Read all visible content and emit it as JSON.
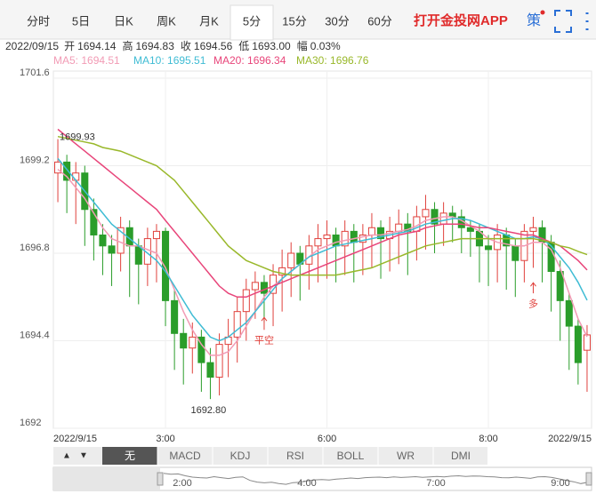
{
  "toolbar": {
    "tabs": [
      "分时",
      "5日",
      "日K",
      "周K",
      "月K",
      "5分",
      "15分",
      "30分",
      "60分"
    ],
    "active_tab": 5,
    "app_link": "打开金投网APP",
    "strategy": "策"
  },
  "quote": {
    "date": "2022/09/15",
    "items": [
      {
        "label": "开",
        "value": "1694.14"
      },
      {
        "label": "高",
        "value": "1694.83"
      },
      {
        "label": "收",
        "value": "1694.56"
      },
      {
        "label": "低",
        "value": "1693.00"
      },
      {
        "label": "幅",
        "value": "0.03%"
      }
    ]
  },
  "chart_data": {
    "type": "candlestick",
    "categories": [
      "2022/9/15",
      null,
      null,
      null,
      null,
      null,
      null,
      null,
      null,
      null,
      null,
      null,
      "3:00",
      null,
      null,
      null,
      null,
      null,
      null,
      null,
      null,
      null,
      null,
      null,
      null,
      null,
      null,
      null,
      null,
      null,
      "6:00",
      null,
      null,
      null,
      null,
      null,
      null,
      null,
      null,
      null,
      null,
      null,
      null,
      null,
      null,
      null,
      null,
      null,
      "8:00",
      null,
      null,
      null,
      null,
      null,
      null,
      null,
      null,
      null,
      null,
      "2022/9/15"
    ],
    "open": [
      1699.0,
      1699.3,
      1698.8,
      1699.0,
      1698.0,
      1697.3,
      1697.0,
      1696.8,
      1697.5,
      1697.0,
      1696.5,
      1697.2,
      1697.4,
      1695.5,
      1694.6,
      1694.2,
      1694.5,
      1693.8,
      1693.4,
      1694.3,
      1694.5,
      1695.2,
      1695.8,
      1696.0,
      1695.7,
      1696.2,
      1696.4,
      1696.8,
      1696.5,
      1697.0,
      1697.2,
      1697.3,
      1697.0,
      1697.4,
      1697.1,
      1697.3,
      1697.5,
      1697.2,
      1697.4,
      1697.6,
      1697.4,
      1697.8,
      1698.0,
      1697.6,
      1697.9,
      1697.8,
      1697.5,
      1697.4,
      1697.0,
      1696.9,
      1697.3,
      1697.0,
      1696.6,
      1697.4,
      1697.5,
      1697.1,
      1696.3,
      1695.5,
      1694.8,
      1694.14
    ],
    "high": [
      1699.93,
      1699.5,
      1699.3,
      1699.2,
      1698.3,
      1697.6,
      1697.3,
      1697.8,
      1697.7,
      1697.2,
      1697.5,
      1697.6,
      1697.5,
      1695.8,
      1695.0,
      1694.9,
      1694.7,
      1694.2,
      1694.6,
      1695.0,
      1695.6,
      1696.1,
      1696.3,
      1696.2,
      1696.5,
      1696.9,
      1697.1,
      1697.0,
      1697.3,
      1697.6,
      1697.7,
      1697.5,
      1697.7,
      1697.6,
      1697.6,
      1697.9,
      1697.7,
      1697.8,
      1698.0,
      1697.9,
      1698.1,
      1698.4,
      1698.2,
      1698.2,
      1698.1,
      1698.0,
      1697.7,
      1697.6,
      1697.3,
      1697.6,
      1697.5,
      1697.2,
      1697.6,
      1697.8,
      1697.7,
      1697.3,
      1696.6,
      1695.7,
      1695.0,
      1694.83
    ],
    "low": [
      1698.2,
      1697.9,
      1697.6,
      1697.0,
      1696.6,
      1696.2,
      1695.9,
      1696.3,
      1695.6,
      1695.4,
      1695.9,
      1696.0,
      1694.8,
      1693.6,
      1693.2,
      1693.5,
      1693.0,
      1692.8,
      1692.9,
      1693.4,
      1693.8,
      1694.4,
      1695.0,
      1694.9,
      1694.8,
      1695.2,
      1695.6,
      1695.5,
      1695.8,
      1696.0,
      1696.1,
      1696.0,
      1696.2,
      1696.0,
      1696.2,
      1696.4,
      1696.1,
      1696.3,
      1696.5,
      1696.2,
      1696.6,
      1696.9,
      1696.8,
      1697.0,
      1697.1,
      1696.8,
      1696.7,
      1696.0,
      1695.9,
      1696.0,
      1695.8,
      1695.6,
      1696.0,
      1696.4,
      1696.0,
      1695.2,
      1694.4,
      1693.6,
      1693.2,
      1693.0
    ],
    "close": [
      1699.3,
      1698.8,
      1699.0,
      1698.0,
      1697.3,
      1697.0,
      1696.8,
      1697.5,
      1697.0,
      1696.5,
      1697.2,
      1697.4,
      1695.5,
      1694.6,
      1694.2,
      1694.5,
      1693.8,
      1693.4,
      1694.3,
      1694.5,
      1695.2,
      1695.8,
      1696.0,
      1695.7,
      1696.2,
      1696.4,
      1696.8,
      1696.5,
      1697.0,
      1697.2,
      1697.3,
      1697.0,
      1697.4,
      1697.1,
      1697.3,
      1697.5,
      1697.2,
      1697.4,
      1697.6,
      1697.4,
      1697.8,
      1698.0,
      1697.6,
      1697.9,
      1697.8,
      1697.5,
      1697.4,
      1697.0,
      1696.9,
      1697.3,
      1697.0,
      1696.6,
      1697.4,
      1697.5,
      1697.1,
      1696.3,
      1695.5,
      1694.8,
      1693.8,
      1694.56
    ],
    "up_color": "#e0413c",
    "down_color": "#2a9d2a",
    "series": [
      {
        "name": "MA5",
        "label": "MA5: 1694.51",
        "color": "#f29bb5",
        "values": [
          1699.1,
          1698.9,
          1698.6,
          1698.3,
          1697.9,
          1697.5,
          1697.2,
          1697.1,
          1697.0,
          1697.0,
          1696.9,
          1696.8,
          1696.4,
          1695.8,
          1695.2,
          1694.7,
          1694.3,
          1694.0,
          1694.0,
          1694.1,
          1694.4,
          1694.8,
          1695.2,
          1695.6,
          1695.9,
          1696.1,
          1696.3,
          1696.5,
          1696.7,
          1696.9,
          1697.0,
          1697.1,
          1697.15,
          1697.2,
          1697.25,
          1697.3,
          1697.3,
          1697.35,
          1697.4,
          1697.45,
          1697.55,
          1697.7,
          1697.75,
          1697.8,
          1697.8,
          1697.7,
          1697.55,
          1697.4,
          1697.2,
          1697.1,
          1697.05,
          1697.0,
          1697.0,
          1697.1,
          1697.1,
          1696.9,
          1696.4,
          1695.7,
          1695.0,
          1694.51
        ]
      },
      {
        "name": "MA10",
        "label": "MA10: 1695.51",
        "color": "#3fbcd4",
        "values": [
          1699.4,
          1699.1,
          1698.8,
          1698.5,
          1698.2,
          1697.9,
          1697.6,
          1697.4,
          1697.2,
          1697.0,
          1696.8,
          1696.6,
          1696.3,
          1695.9,
          1695.5,
          1695.1,
          1694.8,
          1694.5,
          1694.4,
          1694.5,
          1694.7,
          1694.9,
          1695.2,
          1695.5,
          1695.8,
          1696.1,
          1696.3,
          1696.5,
          1696.7,
          1696.8,
          1696.9,
          1697.0,
          1697.05,
          1697.1,
          1697.15,
          1697.2,
          1697.25,
          1697.3,
          1697.35,
          1697.4,
          1697.5,
          1697.6,
          1697.65,
          1697.7,
          1697.75,
          1697.75,
          1697.7,
          1697.6,
          1697.5,
          1697.4,
          1697.3,
          1697.2,
          1697.2,
          1697.25,
          1697.2,
          1697.0,
          1696.7,
          1696.4,
          1696.0,
          1695.51
        ]
      },
      {
        "name": "MA20",
        "label": "MA20: 1696.34",
        "color": "#e8457a",
        "values": [
          1700.2,
          1700.0,
          1699.8,
          1699.6,
          1699.4,
          1699.2,
          1699.0,
          1698.8,
          1698.6,
          1698.4,
          1698.2,
          1698.0,
          1697.7,
          1697.4,
          1697.1,
          1696.8,
          1696.5,
          1696.2,
          1695.9,
          1695.7,
          1695.6,
          1695.6,
          1695.7,
          1695.8,
          1695.9,
          1696.0,
          1696.1,
          1696.2,
          1696.3,
          1696.4,
          1696.5,
          1696.6,
          1696.7,
          1696.8,
          1696.9,
          1697.0,
          1697.1,
          1697.2,
          1697.3,
          1697.35,
          1697.4,
          1697.5,
          1697.55,
          1697.6,
          1697.6,
          1697.6,
          1697.55,
          1697.5,
          1697.5,
          1697.45,
          1697.4,
          1697.35,
          1697.3,
          1697.3,
          1697.2,
          1697.1,
          1697.0,
          1696.8,
          1696.6,
          1696.34
        ]
      },
      {
        "name": "MA30",
        "label": "MA30: 1696.76",
        "color": "#99b82a",
        "values": [
          1700.0,
          1699.95,
          1699.9,
          1699.85,
          1699.8,
          1699.7,
          1699.65,
          1699.6,
          1699.5,
          1699.4,
          1699.3,
          1699.2,
          1699.0,
          1698.8,
          1698.5,
          1698.2,
          1697.9,
          1697.6,
          1697.3,
          1697.0,
          1696.8,
          1696.6,
          1696.5,
          1696.4,
          1696.3,
          1696.25,
          1696.2,
          1696.2,
          1696.2,
          1696.2,
          1696.2,
          1696.2,
          1696.25,
          1696.3,
          1696.35,
          1696.4,
          1696.5,
          1696.6,
          1696.7,
          1696.8,
          1696.9,
          1697.0,
          1697.05,
          1697.1,
          1697.15,
          1697.2,
          1697.2,
          1697.2,
          1697.2,
          1697.2,
          1697.2,
          1697.2,
          1697.2,
          1697.2,
          1697.15,
          1697.1,
          1697.0,
          1696.95,
          1696.85,
          1696.76
        ]
      }
    ],
    "ylim": [
      1692,
      1701.6
    ],
    "yticks": [
      1692,
      1694.4,
      1696.8,
      1699.2,
      1701.6
    ],
    "grid": true,
    "annotations": [
      "1699.93",
      "1692.80",
      "平空",
      "多"
    ]
  },
  "indicators": {
    "tabs": [
      "无",
      "MACD",
      "KDJ",
      "RSI",
      "BOLL",
      "WR",
      "DMI"
    ],
    "active_tab": 0
  },
  "navigator": {
    "labels": [
      "2:00",
      "4:00",
      "7:00",
      "9:00"
    ]
  }
}
